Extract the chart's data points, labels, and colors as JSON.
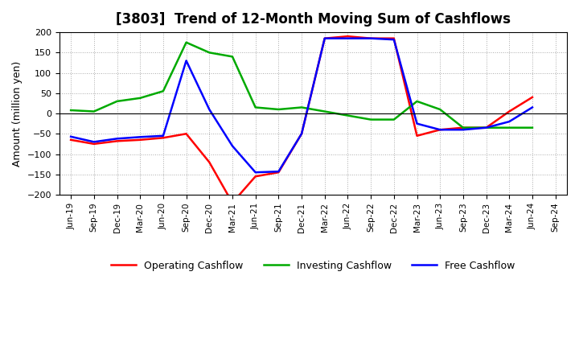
{
  "title": "[3803]  Trend of 12-Month Moving Sum of Cashflows",
  "ylabel": "Amount (million yen)",
  "ylim": [
    -200,
    200
  ],
  "yticks": [
    -200,
    -150,
    -100,
    -50,
    0,
    50,
    100,
    150,
    200
  ],
  "x_labels": [
    "Jun-19",
    "Sep-19",
    "Dec-19",
    "Mar-20",
    "Jun-20",
    "Sep-20",
    "Dec-20",
    "Mar-21",
    "Jun-21",
    "Sep-21",
    "Dec-21",
    "Mar-22",
    "Jun-22",
    "Sep-22",
    "Dec-22",
    "Mar-23",
    "Jun-23",
    "Sep-23",
    "Dec-23",
    "Mar-24",
    "Jun-24",
    "Sep-24"
  ],
  "operating": [
    -65,
    -75,
    -68,
    -65,
    -60,
    -50,
    -120,
    -220,
    -155,
    -145,
    -50,
    185,
    190,
    185,
    185,
    -55,
    -40,
    -35,
    -35,
    5,
    40,
    null
  ],
  "investing": [
    8,
    5,
    30,
    38,
    55,
    175,
    150,
    140,
    15,
    10,
    15,
    5,
    -5,
    -15,
    -15,
    30,
    10,
    -35,
    -35,
    -35,
    -35,
    null
  ],
  "free": [
    -57,
    -70,
    -62,
    -58,
    -55,
    130,
    10,
    -80,
    -145,
    -143,
    -50,
    185,
    185,
    185,
    182,
    -25,
    -40,
    -40,
    -35,
    -20,
    15,
    null
  ],
  "operating_color": "#FF0000",
  "investing_color": "#00AA00",
  "free_color": "#0000FF",
  "bg_color": "#FFFFFF",
  "plot_bg_color": "#FFFFFF",
  "legend_labels": [
    "Operating Cashflow",
    "Investing Cashflow",
    "Free Cashflow"
  ]
}
